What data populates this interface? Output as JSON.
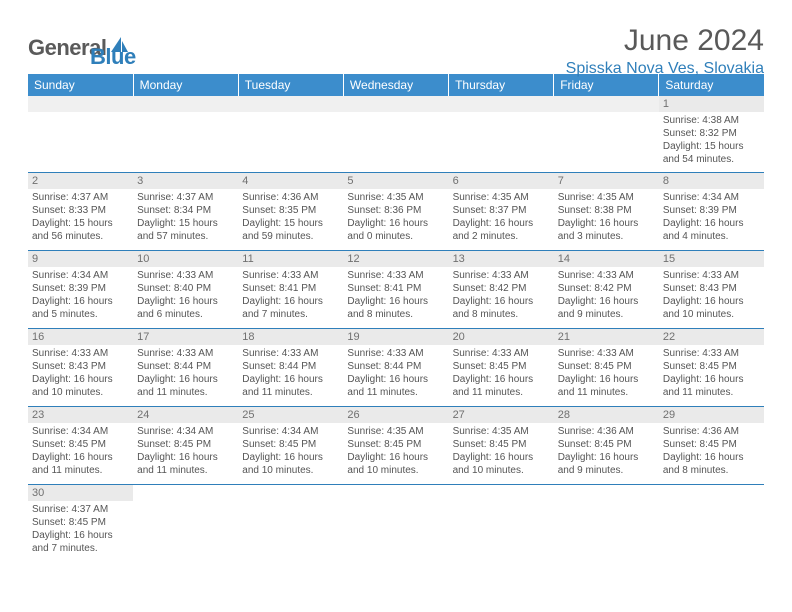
{
  "logo": {
    "text1": "General",
    "text2": "Blue"
  },
  "title": "June 2024",
  "location": "Spisska Nova Ves, Slovakia",
  "colors": {
    "header_bar": "#3c8dcc",
    "accent": "#2f7fba",
    "gray_row": "#eaeaea",
    "text": "#555555",
    "title_text": "#595959"
  },
  "day_headers": [
    "Sunday",
    "Monday",
    "Tuesday",
    "Wednesday",
    "Thursday",
    "Friday",
    "Saturday"
  ],
  "weeks": [
    [
      null,
      null,
      null,
      null,
      null,
      null,
      {
        "d": "1",
        "sr": "Sunrise: 4:38 AM",
        "ss": "Sunset: 8:32 PM",
        "dl1": "Daylight: 15 hours",
        "dl2": "and 54 minutes."
      }
    ],
    [
      {
        "d": "2",
        "sr": "Sunrise: 4:37 AM",
        "ss": "Sunset: 8:33 PM",
        "dl1": "Daylight: 15 hours",
        "dl2": "and 56 minutes."
      },
      {
        "d": "3",
        "sr": "Sunrise: 4:37 AM",
        "ss": "Sunset: 8:34 PM",
        "dl1": "Daylight: 15 hours",
        "dl2": "and 57 minutes."
      },
      {
        "d": "4",
        "sr": "Sunrise: 4:36 AM",
        "ss": "Sunset: 8:35 PM",
        "dl1": "Daylight: 15 hours",
        "dl2": "and 59 minutes."
      },
      {
        "d": "5",
        "sr": "Sunrise: 4:35 AM",
        "ss": "Sunset: 8:36 PM",
        "dl1": "Daylight: 16 hours",
        "dl2": "and 0 minutes."
      },
      {
        "d": "6",
        "sr": "Sunrise: 4:35 AM",
        "ss": "Sunset: 8:37 PM",
        "dl1": "Daylight: 16 hours",
        "dl2": "and 2 minutes."
      },
      {
        "d": "7",
        "sr": "Sunrise: 4:35 AM",
        "ss": "Sunset: 8:38 PM",
        "dl1": "Daylight: 16 hours",
        "dl2": "and 3 minutes."
      },
      {
        "d": "8",
        "sr": "Sunrise: 4:34 AM",
        "ss": "Sunset: 8:39 PM",
        "dl1": "Daylight: 16 hours",
        "dl2": "and 4 minutes."
      }
    ],
    [
      {
        "d": "9",
        "sr": "Sunrise: 4:34 AM",
        "ss": "Sunset: 8:39 PM",
        "dl1": "Daylight: 16 hours",
        "dl2": "and 5 minutes."
      },
      {
        "d": "10",
        "sr": "Sunrise: 4:33 AM",
        "ss": "Sunset: 8:40 PM",
        "dl1": "Daylight: 16 hours",
        "dl2": "and 6 minutes."
      },
      {
        "d": "11",
        "sr": "Sunrise: 4:33 AM",
        "ss": "Sunset: 8:41 PM",
        "dl1": "Daylight: 16 hours",
        "dl2": "and 7 minutes."
      },
      {
        "d": "12",
        "sr": "Sunrise: 4:33 AM",
        "ss": "Sunset: 8:41 PM",
        "dl1": "Daylight: 16 hours",
        "dl2": "and 8 minutes."
      },
      {
        "d": "13",
        "sr": "Sunrise: 4:33 AM",
        "ss": "Sunset: 8:42 PM",
        "dl1": "Daylight: 16 hours",
        "dl2": "and 8 minutes."
      },
      {
        "d": "14",
        "sr": "Sunrise: 4:33 AM",
        "ss": "Sunset: 8:42 PM",
        "dl1": "Daylight: 16 hours",
        "dl2": "and 9 minutes."
      },
      {
        "d": "15",
        "sr": "Sunrise: 4:33 AM",
        "ss": "Sunset: 8:43 PM",
        "dl1": "Daylight: 16 hours",
        "dl2": "and 10 minutes."
      }
    ],
    [
      {
        "d": "16",
        "sr": "Sunrise: 4:33 AM",
        "ss": "Sunset: 8:43 PM",
        "dl1": "Daylight: 16 hours",
        "dl2": "and 10 minutes."
      },
      {
        "d": "17",
        "sr": "Sunrise: 4:33 AM",
        "ss": "Sunset: 8:44 PM",
        "dl1": "Daylight: 16 hours",
        "dl2": "and 11 minutes."
      },
      {
        "d": "18",
        "sr": "Sunrise: 4:33 AM",
        "ss": "Sunset: 8:44 PM",
        "dl1": "Daylight: 16 hours",
        "dl2": "and 11 minutes."
      },
      {
        "d": "19",
        "sr": "Sunrise: 4:33 AM",
        "ss": "Sunset: 8:44 PM",
        "dl1": "Daylight: 16 hours",
        "dl2": "and 11 minutes."
      },
      {
        "d": "20",
        "sr": "Sunrise: 4:33 AM",
        "ss": "Sunset: 8:45 PM",
        "dl1": "Daylight: 16 hours",
        "dl2": "and 11 minutes."
      },
      {
        "d": "21",
        "sr": "Sunrise: 4:33 AM",
        "ss": "Sunset: 8:45 PM",
        "dl1": "Daylight: 16 hours",
        "dl2": "and 11 minutes."
      },
      {
        "d": "22",
        "sr": "Sunrise: 4:33 AM",
        "ss": "Sunset: 8:45 PM",
        "dl1": "Daylight: 16 hours",
        "dl2": "and 11 minutes."
      }
    ],
    [
      {
        "d": "23",
        "sr": "Sunrise: 4:34 AM",
        "ss": "Sunset: 8:45 PM",
        "dl1": "Daylight: 16 hours",
        "dl2": "and 11 minutes."
      },
      {
        "d": "24",
        "sr": "Sunrise: 4:34 AM",
        "ss": "Sunset: 8:45 PM",
        "dl1": "Daylight: 16 hours",
        "dl2": "and 11 minutes."
      },
      {
        "d": "25",
        "sr": "Sunrise: 4:34 AM",
        "ss": "Sunset: 8:45 PM",
        "dl1": "Daylight: 16 hours",
        "dl2": "and 10 minutes."
      },
      {
        "d": "26",
        "sr": "Sunrise: 4:35 AM",
        "ss": "Sunset: 8:45 PM",
        "dl1": "Daylight: 16 hours",
        "dl2": "and 10 minutes."
      },
      {
        "d": "27",
        "sr": "Sunrise: 4:35 AM",
        "ss": "Sunset: 8:45 PM",
        "dl1": "Daylight: 16 hours",
        "dl2": "and 10 minutes."
      },
      {
        "d": "28",
        "sr": "Sunrise: 4:36 AM",
        "ss": "Sunset: 8:45 PM",
        "dl1": "Daylight: 16 hours",
        "dl2": "and 9 minutes."
      },
      {
        "d": "29",
        "sr": "Sunrise: 4:36 AM",
        "ss": "Sunset: 8:45 PM",
        "dl1": "Daylight: 16 hours",
        "dl2": "and 8 minutes."
      }
    ],
    [
      {
        "d": "30",
        "sr": "Sunrise: 4:37 AM",
        "ss": "Sunset: 8:45 PM",
        "dl1": "Daylight: 16 hours",
        "dl2": "and 7 minutes."
      },
      null,
      null,
      null,
      null,
      null,
      null
    ]
  ]
}
